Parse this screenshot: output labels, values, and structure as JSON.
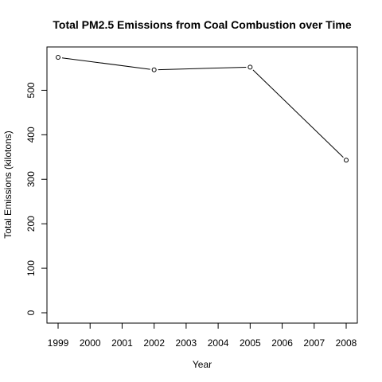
{
  "chart_data": {
    "type": "line",
    "title": "Total PM2.5 Emissions from Coal Combustion over Time",
    "xlabel": "Year",
    "ylabel": "Total Emissions (kilotons)",
    "x": [
      1999,
      2002,
      2005,
      2008
    ],
    "y": [
      574,
      546,
      552,
      343
    ],
    "xlim": [
      1999,
      2008
    ],
    "ylim": [
      0,
      575
    ],
    "xticks": [
      1999,
      2000,
      2001,
      2002,
      2003,
      2004,
      2005,
      2006,
      2007,
      2008
    ],
    "yticks": [
      0,
      100,
      200,
      300,
      400,
      500
    ],
    "marker": "open-circle",
    "line_color": "#000000",
    "grid": false
  }
}
